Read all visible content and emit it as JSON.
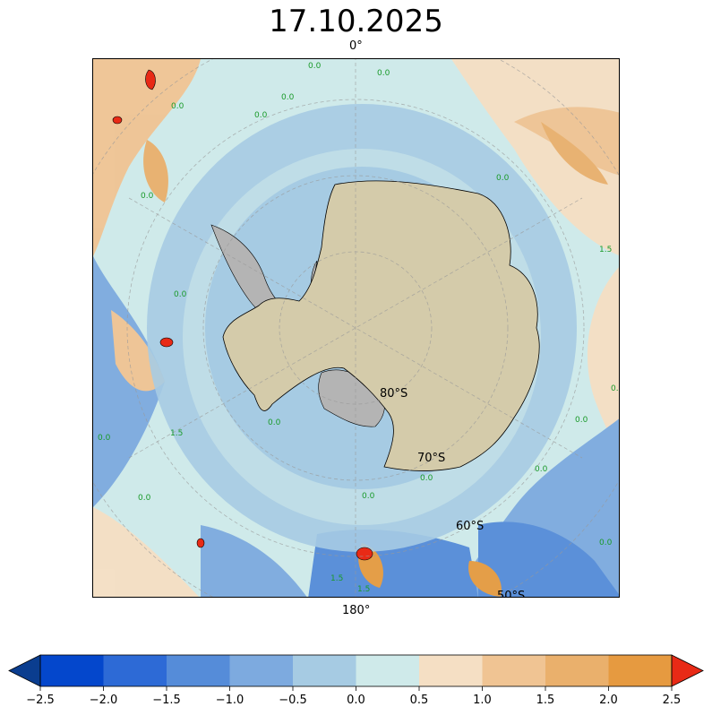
{
  "map": {
    "title": "17.10.2025",
    "meridian_labels": {
      "top": "0°",
      "bottom": "180°"
    },
    "latitude_labels": [
      "80°S",
      "70°S",
      "60°S",
      "50°S"
    ],
    "contour_labels": [
      "0.0",
      "1.5"
    ],
    "projection": "south-polar-stereographic",
    "colors": {
      "land": "#d4cbaa",
      "ice_shelf": "#b4b4b4",
      "contour_label": "#1a9a2a",
      "frame": "#000000"
    }
  },
  "colorbar": {
    "ticks": [
      "−2.5",
      "−2.0",
      "−1.5",
      "−1.0",
      "−0.5",
      "0.0",
      "0.5",
      "1.0",
      "1.5",
      "2.0",
      "2.5"
    ],
    "colors": [
      "#0447cc",
      "#2d6ad6",
      "#558cd9",
      "#7daadf",
      "#a6cbe3",
      "#cfeaea",
      "#f5dfc4",
      "#f0c493",
      "#eab06c",
      "#e69a40"
    ],
    "under_color": "#0a3d8f",
    "over_color": "#e82a16",
    "extend": "both"
  }
}
